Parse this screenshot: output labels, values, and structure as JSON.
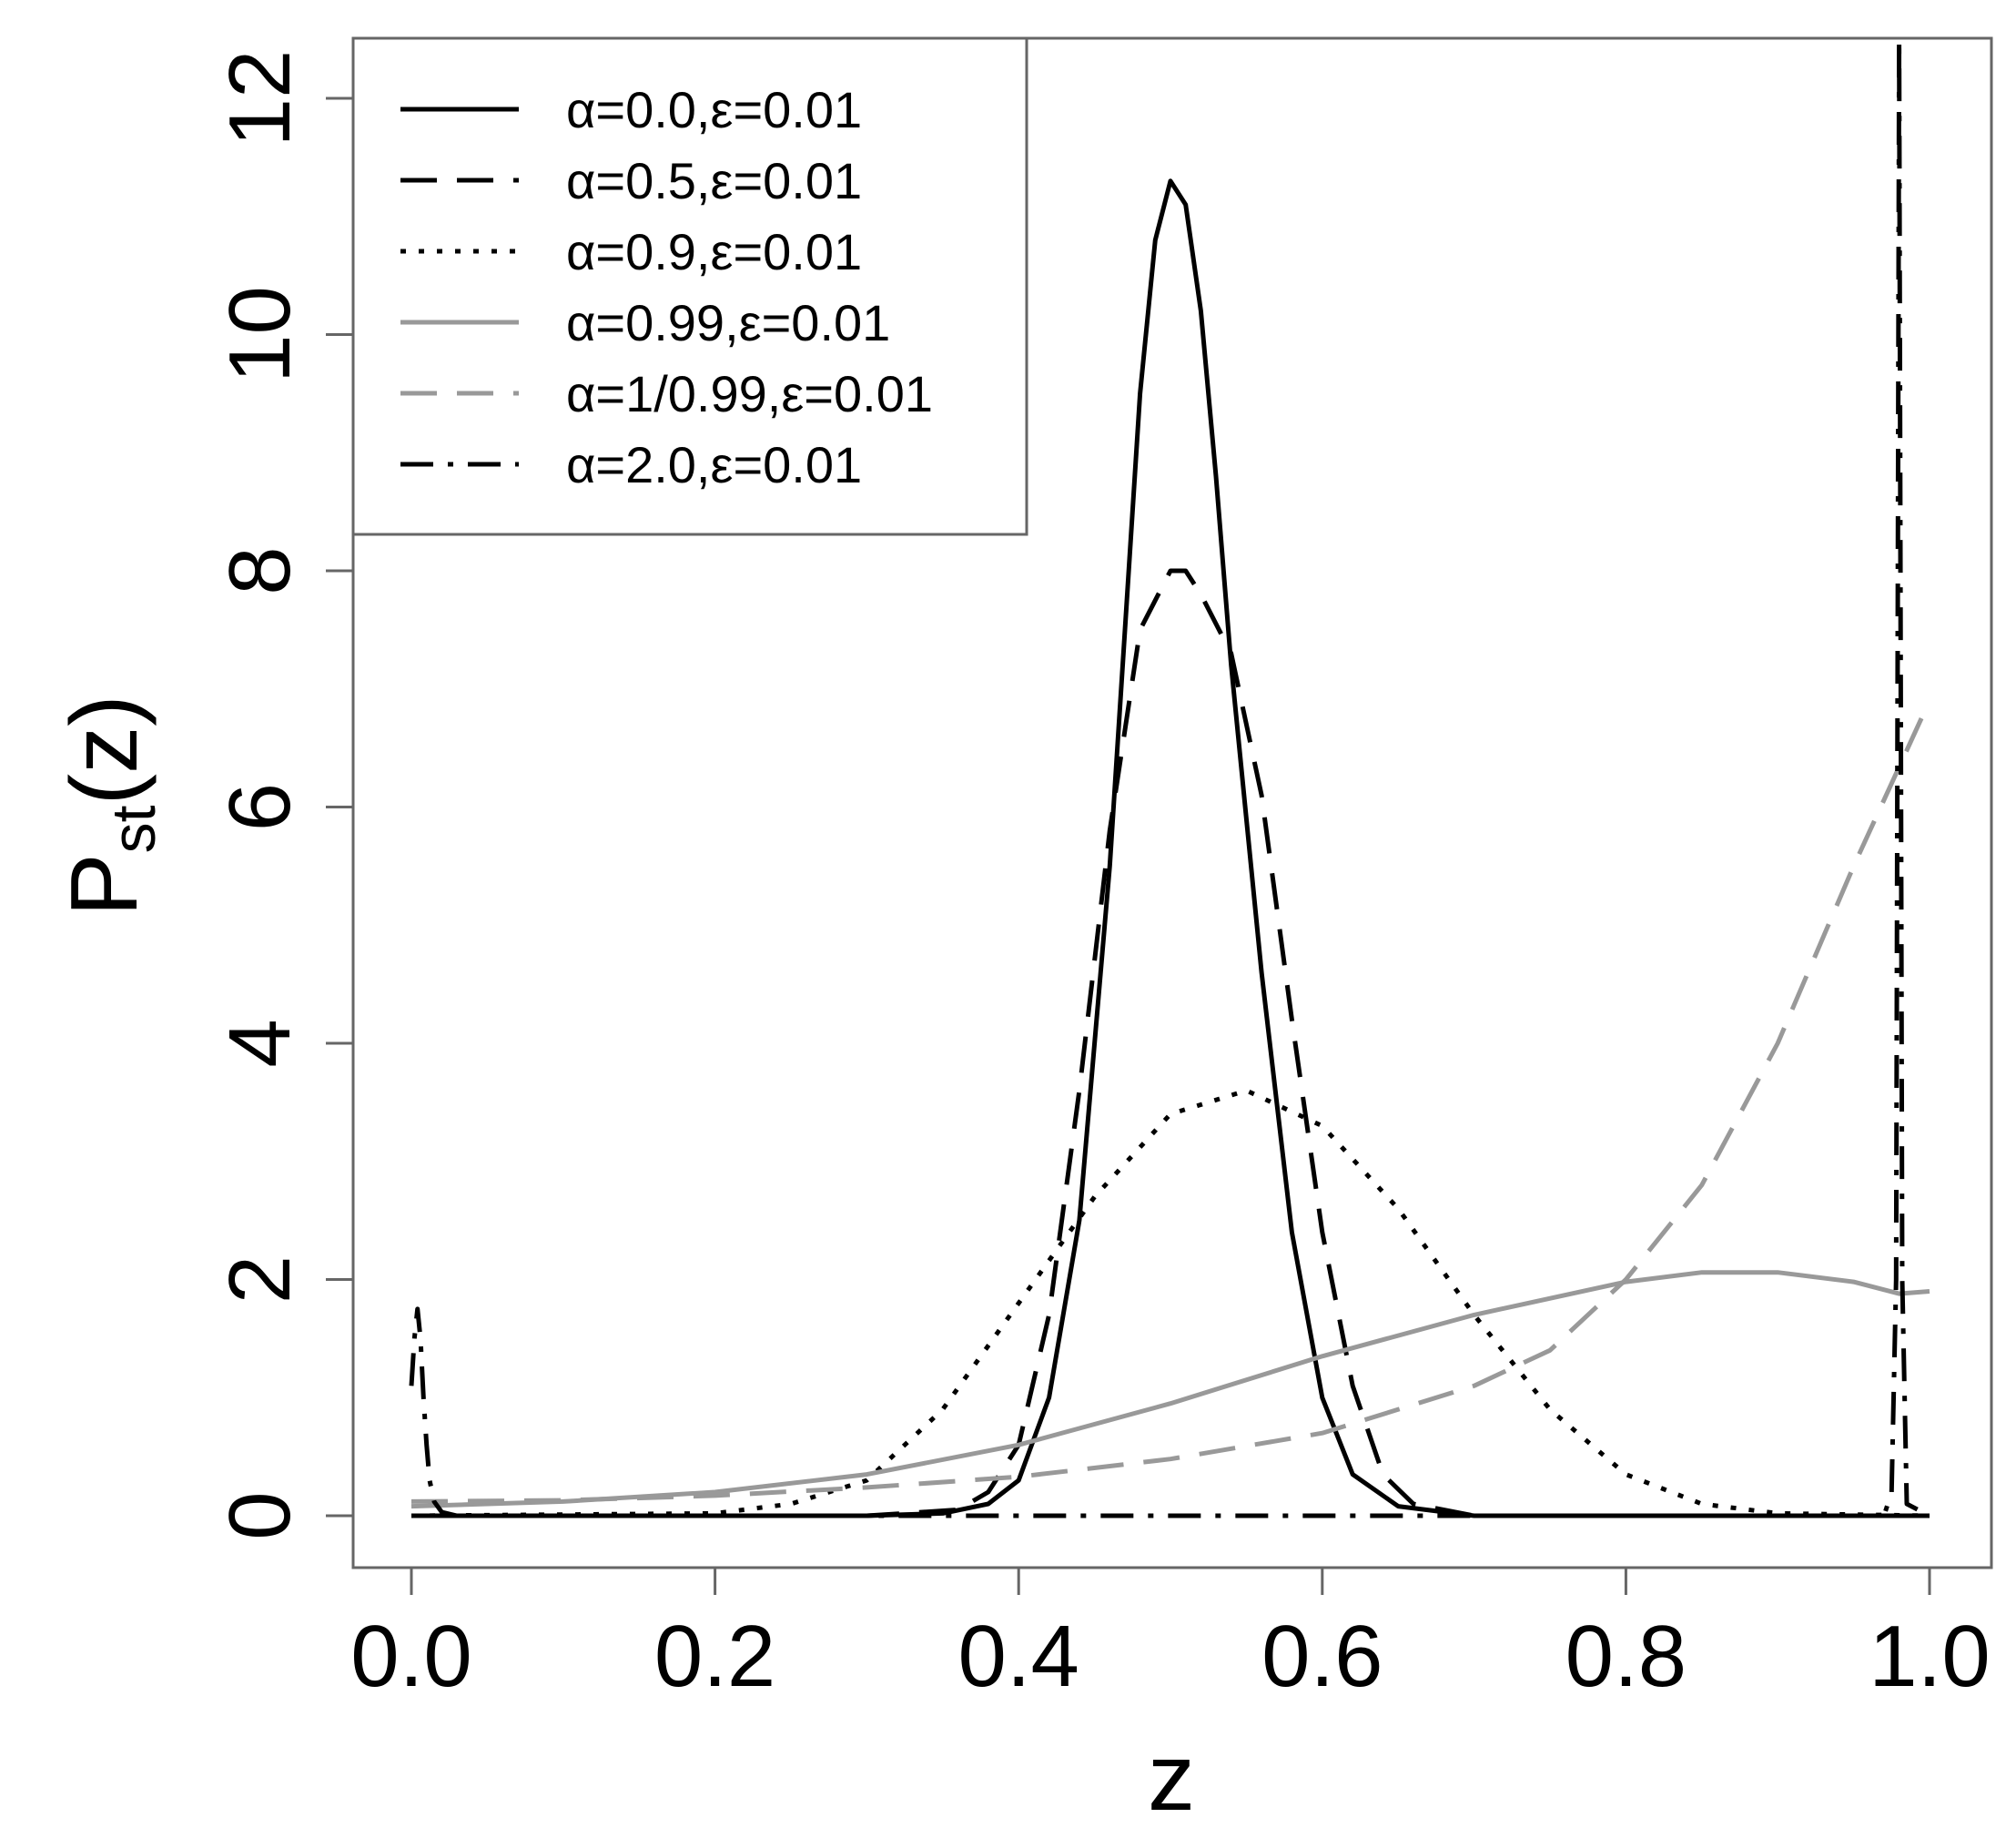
{
  "chart_data": {
    "type": "line",
    "title": "",
    "xlabel": "z",
    "ylabel_main": "P",
    "ylabel_sub": "st",
    "ylabel_tail": "(z)",
    "xlim": [
      0.0,
      1.0
    ],
    "ylim": [
      0,
      12
    ],
    "x_ticks": [
      0.0,
      0.2,
      0.4,
      0.6,
      0.8,
      1.0
    ],
    "x_tick_labels": [
      "0.0",
      "0.2",
      "0.4",
      "0.6",
      "0.8",
      "1.0"
    ],
    "y_ticks": [
      0,
      2,
      4,
      6,
      8,
      10,
      12
    ],
    "y_tick_labels": [
      "0",
      "2",
      "4",
      "6",
      "8",
      "10",
      "12"
    ],
    "grid": false,
    "legend_position": "top-left",
    "series": [
      {
        "name": "α=0.0,ε=0.01",
        "color": "#000000",
        "dash": "solid",
        "x": [
          0.0,
          0.3,
          0.35,
          0.38,
          0.4,
          0.42,
          0.44,
          0.46,
          0.47,
          0.48,
          0.49,
          0.5,
          0.51,
          0.52,
          0.53,
          0.54,
          0.56,
          0.58,
          0.6,
          0.62,
          0.65,
          0.7,
          1.0
        ],
        "y": [
          0.0,
          0.0,
          0.02,
          0.1,
          0.3,
          1.0,
          2.5,
          5.5,
          7.5,
          9.5,
          10.8,
          11.3,
          11.1,
          10.2,
          8.8,
          7.2,
          4.6,
          2.4,
          1.0,
          0.35,
          0.08,
          0.0,
          0.0
        ]
      },
      {
        "name": "α=0.5,ε=0.01",
        "color": "#000000",
        "dash": "dashed",
        "x": [
          0.0,
          0.3,
          0.36,
          0.38,
          0.4,
          0.42,
          0.44,
          0.46,
          0.48,
          0.5,
          0.51,
          0.52,
          0.54,
          0.56,
          0.58,
          0.6,
          0.62,
          0.64,
          0.66,
          0.7,
          1.0
        ],
        "y": [
          0.0,
          0.0,
          0.05,
          0.2,
          0.6,
          1.7,
          3.6,
          5.8,
          7.5,
          8.0,
          8.0,
          7.8,
          7.3,
          6.1,
          4.2,
          2.4,
          1.1,
          0.35,
          0.1,
          0.0,
          0.0
        ]
      },
      {
        "name": "α=0.9,ε=0.01",
        "color": "#000000",
        "dash": "dotted",
        "x": [
          0.0,
          0.2,
          0.25,
          0.3,
          0.35,
          0.4,
          0.45,
          0.5,
          0.55,
          0.6,
          0.65,
          0.7,
          0.75,
          0.8,
          0.85,
          0.9,
          1.0
        ],
        "y": [
          0.0,
          0.02,
          0.1,
          0.3,
          0.9,
          1.8,
          2.7,
          3.4,
          3.6,
          3.3,
          2.6,
          1.7,
          0.9,
          0.35,
          0.1,
          0.02,
          0.0
        ]
      },
      {
        "name": "α=0.99,ε=0.01",
        "color": "#999999",
        "dash": "solid",
        "x": [
          0.0,
          0.1,
          0.2,
          0.3,
          0.4,
          0.5,
          0.6,
          0.7,
          0.8,
          0.85,
          0.9,
          0.95,
          0.98,
          1.0
        ],
        "y": [
          0.08,
          0.12,
          0.2,
          0.35,
          0.6,
          0.95,
          1.35,
          1.7,
          1.98,
          2.06,
          2.06,
          1.98,
          1.88,
          1.9
        ]
      },
      {
        "name": "α=1/0.99,ε=0.01",
        "color": "#999999",
        "dash": "dashed",
        "x": [
          0.0,
          0.1,
          0.2,
          0.3,
          0.4,
          0.5,
          0.6,
          0.7,
          0.75,
          0.8,
          0.85,
          0.9,
          0.95,
          1.0
        ],
        "y": [
          0.12,
          0.13,
          0.17,
          0.24,
          0.33,
          0.48,
          0.7,
          1.1,
          1.4,
          2.0,
          2.8,
          4.0,
          5.5,
          6.9
        ]
      },
      {
        "name": "α=2.0,ε=0.01",
        "color": "#000000",
        "dash": "dashdot",
        "x": [
          0.0,
          0.002,
          0.004,
          0.006,
          0.008,
          0.01,
          0.012,
          0.015,
          0.02,
          0.03,
          0.97,
          0.975,
          0.978,
          0.98,
          0.982,
          0.985,
          1.0
        ],
        "y": [
          1.1,
          1.5,
          1.75,
          1.5,
          1.0,
          0.6,
          0.3,
          0.12,
          0.03,
          0.0,
          0.0,
          0.2,
          2.0,
          12.5,
          2.0,
          0.1,
          0.0
        ]
      }
    ]
  }
}
